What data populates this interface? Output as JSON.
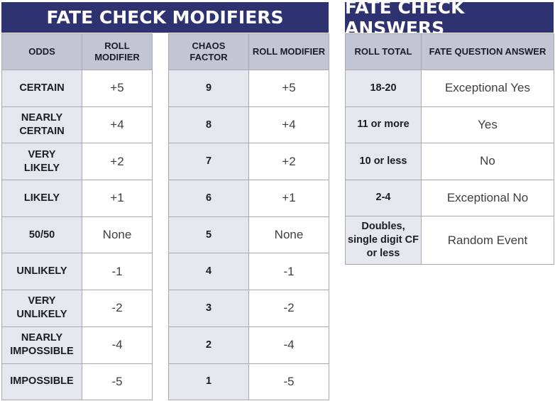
{
  "modifiers": {
    "title": "FATE CHECK MODIFIERS",
    "odds_headers": [
      "ODDS",
      "ROLL MODIFIER"
    ],
    "chaos_headers": [
      "CHAOS FACTOR",
      "ROLL MODIFIER"
    ],
    "odds_rows": [
      {
        "odds": "CERTAIN",
        "modifier": "+5"
      },
      {
        "odds": "NEARLY CERTAIN",
        "modifier": "+4"
      },
      {
        "odds": "VERY LIKELY",
        "modifier": "+2"
      },
      {
        "odds": "LIKELY",
        "modifier": "+1"
      },
      {
        "odds": "50/50",
        "modifier": "None"
      },
      {
        "odds": "UNLIKELY",
        "modifier": "-1"
      },
      {
        "odds": "VERY UNLIKELY",
        "modifier": "-2"
      },
      {
        "odds": "NEARLY IMPOSSIBLE",
        "modifier": "-4"
      },
      {
        "odds": "IMPOSSIBLE",
        "modifier": "-5"
      }
    ],
    "chaos_rows": [
      {
        "chaos": "9",
        "modifier": "+5"
      },
      {
        "chaos": "8",
        "modifier": "+4"
      },
      {
        "chaos": "7",
        "modifier": "+2"
      },
      {
        "chaos": "6",
        "modifier": "+1"
      },
      {
        "chaos": "5",
        "modifier": "None"
      },
      {
        "chaos": "4",
        "modifier": "-1"
      },
      {
        "chaos": "3",
        "modifier": "-2"
      },
      {
        "chaos": "2",
        "modifier": "-4"
      },
      {
        "chaos": "1",
        "modifier": "-5"
      }
    ]
  },
  "answers": {
    "title": "FATE CHECK ANSWERS",
    "headers": [
      "ROLL TOTAL",
      "FATE QUESTION ANSWER"
    ],
    "rows": [
      {
        "total": "18-20",
        "answer": "Exceptional Yes"
      },
      {
        "total": "11 or more",
        "answer": "Yes"
      },
      {
        "total": "10 or less",
        "answer": "No"
      },
      {
        "total": "2-4",
        "answer": "Exceptional No"
      },
      {
        "total": "Doubles, single digit CF or less",
        "answer": "Random Event"
      }
    ]
  },
  "colors": {
    "banner": "#2f3270",
    "header_cell": "#c4c5d4",
    "label_cell": "#e5e6ee",
    "value_cell": "#ffffff",
    "border": "#a7a8b0"
  }
}
